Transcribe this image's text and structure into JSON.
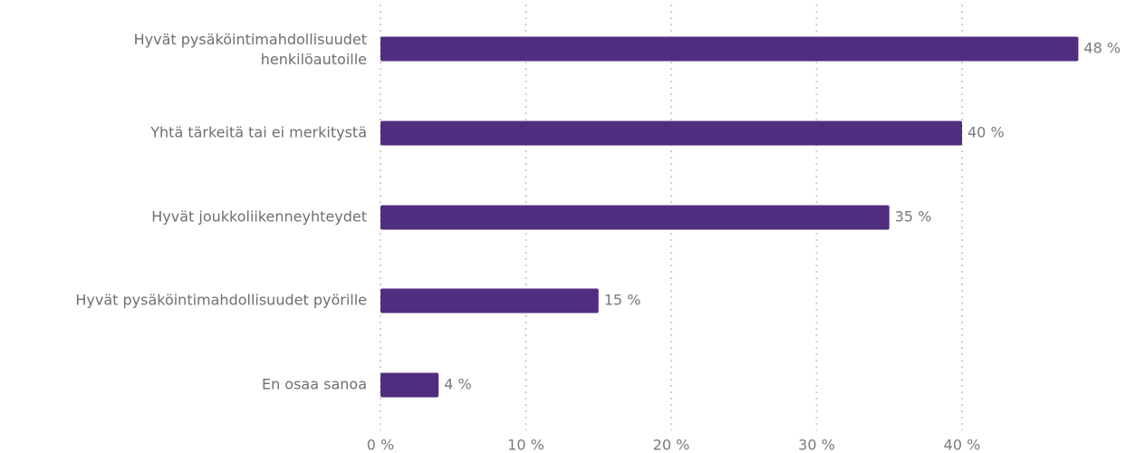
{
  "chart_data": {
    "type": "bar",
    "orientation": "horizontal",
    "categories": [
      "Hyvät pysäköintimahdollisuudet henkilöautoille",
      "Yhtä tärkeitä tai ei merkitystä",
      "Hyvät joukkoliikenneyhteydet",
      "Hyvät pysäköintimahdollisuudet pyörille",
      "En osaa sanoa"
    ],
    "values": [
      48,
      40,
      35,
      15,
      4
    ],
    "value_labels": [
      "48 %",
      "40 %",
      "35 %",
      "15 %",
      "4 %"
    ],
    "unit": "%",
    "xlim": [
      0,
      50
    ],
    "xticks": [
      0,
      10,
      20,
      30,
      40
    ],
    "xtick_labels": [
      "0 %",
      "10 %",
      "20 %",
      "30 %",
      "40 %"
    ],
    "grid": "vertical dotted",
    "legend": "none",
    "colors": {
      "bar": "#4f2d7f",
      "grid": "#cfcfcf"
    }
  }
}
